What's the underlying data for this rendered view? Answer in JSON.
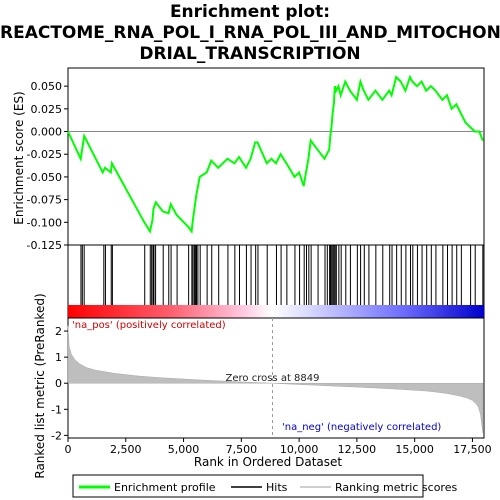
{
  "title_lines": [
    "Enrichment plot:",
    "REACTOME_RNA_POL_I_RNA_POL_III_AND_MITOCHON",
    "DRIAL_TRANSCRIPTION"
  ],
  "legend": {
    "items": [
      {
        "label": "Enrichment profile",
        "color": "#00ff00"
      },
      {
        "label": "Hits",
        "color": "#000000"
      },
      {
        "label": "Ranking metric scores",
        "color": "#bebebe"
      }
    ]
  },
  "colors": {
    "profile": "#00ff00",
    "hits": "#000000",
    "metric": "#bebebe",
    "pos_text": "#cc0000",
    "neg_text": "#0000cc"
  },
  "chart_data": {
    "type": "line",
    "n_genes": 18000,
    "xlim": [
      0,
      18000
    ],
    "xlabel": "Rank in Ordered Dataset",
    "x_ticks": [
      0,
      2500,
      5000,
      7500,
      10000,
      12500,
      15000,
      17500
    ],
    "x_tick_labels": [
      "0",
      "2,500",
      "5,000",
      "7,500",
      "10,000",
      "12,500",
      "15,000",
      "17,500"
    ],
    "es": {
      "ylabel": "Enrichment score (ES)",
      "ylim": [
        -0.125,
        0.07
      ],
      "y_ticks": [
        -0.125,
        -0.1,
        -0.075,
        -0.05,
        -0.025,
        0.0,
        0.025,
        0.05
      ],
      "y_tick_labels": [
        "-0.125",
        "-0.100",
        "-0.075",
        "-0.050",
        "-0.025",
        "0.000",
        "0.025",
        "0.050"
      ],
      "profile": {
        "x": [
          0,
          550,
          700,
          1500,
          1600,
          1850,
          1900,
          3300,
          3550,
          3650,
          3700,
          3800,
          4100,
          4350,
          4450,
          4700,
          5200,
          5350,
          5400,
          5550,
          5700,
          6000,
          6200,
          6500,
          6900,
          7200,
          7400,
          7700,
          7900,
          8100,
          8200,
          8600,
          8800,
          9000,
          9200,
          9450,
          9800,
          10000,
          10200,
          10300,
          10400,
          10500,
          10800,
          11100,
          11200,
          11300,
          11350,
          11400,
          11450,
          11500,
          11550,
          11600,
          11700,
          11800,
          12000,
          12200,
          12500,
          12650,
          12800,
          13000,
          13300,
          13600,
          13900,
          14000,
          14200,
          14400,
          14600,
          14800,
          14900,
          15100,
          15300,
          15500,
          15700,
          15900,
          16200,
          16400,
          16600,
          16800,
          17000,
          17200,
          17400,
          17600,
          17800,
          17950
        ],
        "y": [
          0.0,
          -0.03,
          -0.005,
          -0.045,
          -0.04,
          -0.045,
          -0.035,
          -0.1,
          -0.11,
          -0.098,
          -0.085,
          -0.078,
          -0.088,
          -0.09,
          -0.08,
          -0.092,
          -0.105,
          -0.11,
          -0.098,
          -0.07,
          -0.05,
          -0.045,
          -0.032,
          -0.04,
          -0.03,
          -0.035,
          -0.028,
          -0.04,
          -0.03,
          -0.012,
          -0.012,
          -0.035,
          -0.03,
          -0.035,
          -0.025,
          -0.035,
          -0.05,
          -0.045,
          -0.06,
          -0.045,
          -0.03,
          -0.01,
          -0.02,
          -0.03,
          -0.025,
          -0.02,
          -0.005,
          0.005,
          0.02,
          0.03,
          0.05,
          0.045,
          0.05,
          0.04,
          0.055,
          0.045,
          0.035,
          0.055,
          0.045,
          0.035,
          0.045,
          0.035,
          0.045,
          0.04,
          0.06,
          0.055,
          0.045,
          0.06,
          0.055,
          0.05,
          0.055,
          0.045,
          0.05,
          0.045,
          0.035,
          0.04,
          0.025,
          0.03,
          0.02,
          0.01,
          0.005,
          0.0,
          0.0,
          -0.01
        ]
      }
    },
    "hits": [
      560,
      620,
      700,
      1550,
      1620,
      1870,
      1920,
      3320,
      3560,
      3620,
      3680,
      3720,
      3790,
      4120,
      4360,
      4460,
      4720,
      5220,
      5360,
      5410,
      5470,
      5520,
      5560,
      5620,
      5720,
      6020,
      6220,
      6520,
      6920,
      7220,
      7420,
      7720,
      7920,
      8120,
      8220,
      8620,
      9020,
      9220,
      9470,
      9820,
      10020,
      10220,
      10320,
      10420,
      10520,
      10820,
      11120,
      11220,
      11320,
      11360,
      11410,
      11460,
      11510,
      11560,
      11610,
      11720,
      11820,
      12020,
      12220,
      12520,
      12660,
      12820,
      13020,
      13320,
      13620,
      13920,
      14020,
      14220,
      14420,
      14620,
      14820,
      14920,
      15120,
      15320,
      15520,
      15720,
      15920,
      16220,
      16420,
      16620,
      16820,
      17020,
      17420,
      17620,
      17950
    ],
    "metric": {
      "ylabel": "Ranked list metric (PreRanked)",
      "ylim": [
        -2.1,
        2.5
      ],
      "y_ticks": [
        -2,
        -1,
        0,
        1,
        2
      ],
      "y_tick_labels": [
        "-2",
        "-1",
        "0",
        "1",
        "2"
      ],
      "x": [
        0,
        50,
        150,
        300,
        500,
        800,
        1200,
        2000,
        3000,
        4000,
        5000,
        6000,
        7000,
        8000,
        8849,
        9500,
        10500,
        11500,
        12500,
        13500,
        14500,
        15500,
        16000,
        16500,
        17000,
        17300,
        17500,
        17650,
        17750,
        17850,
        17950
      ],
      "values": [
        2.2,
        1.4,
        1.1,
        0.9,
        0.75,
        0.6,
        0.5,
        0.38,
        0.28,
        0.21,
        0.16,
        0.11,
        0.07,
        0.03,
        0.0,
        -0.03,
        -0.07,
        -0.11,
        -0.15,
        -0.19,
        -0.24,
        -0.3,
        -0.35,
        -0.41,
        -0.5,
        -0.58,
        -0.66,
        -0.78,
        -0.9,
        -1.2,
        -1.9
      ]
    },
    "annotations": {
      "pos_label": "'na_pos' (positively correlated)",
      "neg_label": "'na_neg' (negatively correlated)",
      "zero_cross_label": "Zero cross at 8849",
      "zero_cross": 8849
    }
  }
}
